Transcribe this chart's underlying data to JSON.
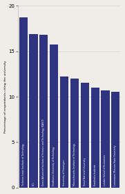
{
  "categories": [
    "Technion Israel Institute of Technology",
    "UCL",
    "Korea Advanced Institute of Science and Technology (KAIST)",
    "Eindhoven University of Technology",
    "University of Groningen",
    "Massachusetts Institute of Technology",
    "Seoul National University",
    "Karolinska Institute",
    "London School of Economics",
    "Lomonosov Moscow State University"
  ],
  "values": [
    18.7,
    16.9,
    16.8,
    15.7,
    12.2,
    12.0,
    11.5,
    11.0,
    10.7,
    10.5
  ],
  "bar_color": "#2e3480",
  "ylabel": "Percentage of respondents citing the university",
  "ylim": [
    0,
    20
  ],
  "yticks": [
    0,
    5,
    10,
    15,
    20
  ],
  "figsize": [
    1.81,
    2.79
  ],
  "dpi": 100
}
